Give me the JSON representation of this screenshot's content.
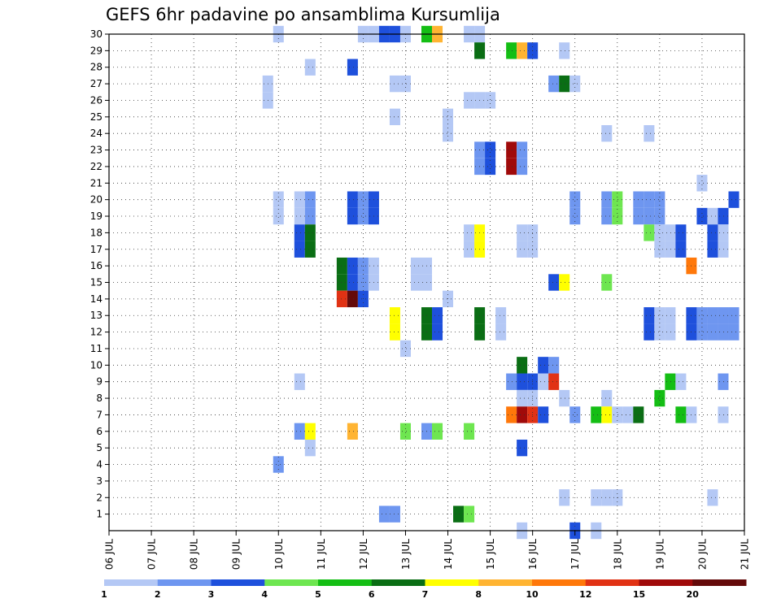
{
  "chart_data": {
    "type": "heatmap",
    "title": "GEFS 6hr padavine po ansamblima Kursumlija",
    "xlabel": "",
    "ylabel": "",
    "x_ticks": [
      "06 JUL",
      "07 JUL",
      "08 JUL",
      "09 JUL",
      "10 JUL",
      "11 JUL",
      "12 JUL",
      "13 JUL",
      "14 JUL",
      "15 JUL",
      "16 JUL",
      "17 JUL",
      "18 JUL",
      "19 JUL",
      "20 JUL",
      "21 JUL"
    ],
    "x_range_days": [
      6,
      21
    ],
    "y_ticks": [
      1,
      2,
      3,
      4,
      5,
      6,
      7,
      8,
      9,
      10,
      11,
      12,
      13,
      14,
      15,
      16,
      17,
      18,
      19,
      20,
      21,
      22,
      23,
      24,
      25,
      26,
      27,
      28,
      29,
      30
    ],
    "y_range": [
      0,
      30
    ],
    "grid": true,
    "colorbar": {
      "bounds": [
        1,
        2,
        3,
        4,
        5,
        6,
        7,
        8,
        10,
        12,
        15,
        20
      ],
      "labels": [
        "1",
        "2",
        "3",
        "4",
        "5",
        "6",
        "7",
        "8",
        "10",
        "12",
        "15",
        "20"
      ],
      "colors": [
        "#b4c8f5",
        "#6e96f0",
        "#1e50dc",
        "#6ee650",
        "#14be14",
        "#0a6e14",
        "#ffff00",
        "#ffb432",
        "#ff780a",
        "#e13214",
        "#a00a0a",
        "#640a0a"
      ]
    },
    "cells_note": "each cell: member, forecast time (day of July + hour), class index into colorbar.colors (0=1-2mm ... 11=>20mm)",
    "cells": [
      [
        30,
        10.0,
        0
      ],
      [
        30,
        12.0,
        0
      ],
      [
        30,
        12.25,
        0
      ],
      [
        30,
        12.5,
        2
      ],
      [
        30,
        12.75,
        2
      ],
      [
        30,
        13.0,
        0
      ],
      [
        30,
        13.5,
        4
      ],
      [
        30,
        13.75,
        7
      ],
      [
        30,
        14.5,
        0
      ],
      [
        30,
        14.75,
        0
      ],
      [
        29,
        14.75,
        5
      ],
      [
        29,
        15.5,
        4
      ],
      [
        29,
        15.75,
        7
      ],
      [
        29,
        16.0,
        2
      ],
      [
        29,
        16.75,
        0
      ],
      [
        28,
        10.75,
        0
      ],
      [
        28,
        11.75,
        2
      ],
      [
        27,
        9.75,
        0
      ],
      [
        27,
        12.75,
        0
      ],
      [
        27,
        13.0,
        0
      ],
      [
        27,
        16.5,
        1
      ],
      [
        27,
        16.75,
        5
      ],
      [
        27,
        17.0,
        0
      ],
      [
        26,
        9.75,
        0
      ],
      [
        26,
        14.5,
        0
      ],
      [
        26,
        14.75,
        0
      ],
      [
        26,
        15.0,
        0
      ],
      [
        25,
        12.75,
        0
      ],
      [
        25,
        14.0,
        0
      ],
      [
        24,
        14.0,
        0
      ],
      [
        24,
        17.75,
        0
      ],
      [
        24,
        18.75,
        0
      ],
      [
        23,
        14.75,
        1
      ],
      [
        23,
        15.0,
        2
      ],
      [
        23,
        15.5,
        10
      ],
      [
        23,
        15.75,
        1
      ],
      [
        22,
        14.75,
        1
      ],
      [
        22,
        15.0,
        2
      ],
      [
        22,
        15.5,
        10
      ],
      [
        22,
        15.75,
        1
      ],
      [
        21,
        20.0,
        0
      ],
      [
        20,
        10.0,
        0
      ],
      [
        20,
        10.5,
        0
      ],
      [
        20,
        10.75,
        1
      ],
      [
        20,
        11.75,
        2
      ],
      [
        20,
        12.0,
        1
      ],
      [
        20,
        12.25,
        2
      ],
      [
        20,
        17.0,
        1
      ],
      [
        20,
        17.75,
        1
      ],
      [
        20,
        18.0,
        3
      ],
      [
        20,
        18.5,
        1
      ],
      [
        20,
        18.75,
        1
      ],
      [
        20,
        19.0,
        1
      ],
      [
        20,
        20.75,
        2
      ],
      [
        19,
        10.0,
        0
      ],
      [
        19,
        10.5,
        0
      ],
      [
        19,
        10.75,
        1
      ],
      [
        19,
        11.75,
        2
      ],
      [
        19,
        12.0,
        1
      ],
      [
        19,
        12.25,
        2
      ],
      [
        19,
        17.0,
        1
      ],
      [
        19,
        17.75,
        1
      ],
      [
        19,
        18.0,
        3
      ],
      [
        19,
        18.5,
        1
      ],
      [
        19,
        18.75,
        1
      ],
      [
        19,
        19.0,
        1
      ],
      [
        19,
        20.0,
        2
      ],
      [
        19,
        20.25,
        0
      ],
      [
        19,
        20.5,
        2
      ],
      [
        18,
        10.5,
        2
      ],
      [
        18,
        10.75,
        5
      ],
      [
        18,
        14.5,
        0
      ],
      [
        18,
        14.75,
        6
      ],
      [
        18,
        15.75,
        0
      ],
      [
        18,
        16.0,
        0
      ],
      [
        18,
        18.75,
        3
      ],
      [
        18,
        19.0,
        0
      ],
      [
        18,
        19.25,
        0
      ],
      [
        18,
        19.5,
        2
      ],
      [
        18,
        20.25,
        2
      ],
      [
        18,
        20.5,
        0
      ],
      [
        17,
        10.5,
        2
      ],
      [
        17,
        10.75,
        5
      ],
      [
        17,
        14.5,
        0
      ],
      [
        17,
        14.75,
        6
      ],
      [
        17,
        15.75,
        0
      ],
      [
        17,
        16.0,
        0
      ],
      [
        17,
        19.0,
        0
      ],
      [
        17,
        19.25,
        0
      ],
      [
        17,
        19.5,
        2
      ],
      [
        17,
        20.25,
        2
      ],
      [
        17,
        20.5,
        0
      ],
      [
        16,
        11.5,
        5
      ],
      [
        16,
        11.75,
        2
      ],
      [
        16,
        12.0,
        1
      ],
      [
        16,
        12.25,
        0
      ],
      [
        16,
        13.25,
        0
      ],
      [
        16,
        13.5,
        0
      ],
      [
        16,
        19.75,
        8
      ],
      [
        15,
        11.5,
        5
      ],
      [
        15,
        11.75,
        2
      ],
      [
        15,
        12.0,
        1
      ],
      [
        15,
        12.25,
        0
      ],
      [
        15,
        13.25,
        0
      ],
      [
        15,
        13.5,
        0
      ],
      [
        15,
        16.5,
        2
      ],
      [
        15,
        16.75,
        6
      ],
      [
        15,
        17.75,
        3
      ],
      [
        14,
        11.5,
        9
      ],
      [
        14,
        11.75,
        11
      ],
      [
        14,
        12.0,
        2
      ],
      [
        14,
        14.0,
        0
      ],
      [
        13,
        12.75,
        6
      ],
      [
        13,
        13.5,
        5
      ],
      [
        13,
        13.75,
        2
      ],
      [
        13,
        14.75,
        5
      ],
      [
        13,
        15.25,
        0
      ],
      [
        13,
        18.75,
        2
      ],
      [
        13,
        19.0,
        0
      ],
      [
        13,
        19.25,
        0
      ],
      [
        13,
        19.75,
        2
      ],
      [
        13,
        20.0,
        1
      ],
      [
        13,
        20.25,
        1
      ],
      [
        13,
        20.5,
        1
      ],
      [
        13,
        20.75,
        1
      ],
      [
        12,
        12.75,
        6
      ],
      [
        12,
        13.5,
        5
      ],
      [
        12,
        13.75,
        2
      ],
      [
        12,
        14.75,
        5
      ],
      [
        12,
        15.25,
        0
      ],
      [
        12,
        18.75,
        2
      ],
      [
        12,
        19.0,
        0
      ],
      [
        12,
        19.25,
        0
      ],
      [
        12,
        19.75,
        2
      ],
      [
        12,
        20.0,
        1
      ],
      [
        12,
        20.25,
        1
      ],
      [
        12,
        20.5,
        1
      ],
      [
        12,
        20.75,
        1
      ],
      [
        11,
        13.0,
        0
      ],
      [
        10,
        15.75,
        5
      ],
      [
        10,
        16.25,
        2
      ],
      [
        10,
        16.5,
        1
      ],
      [
        9,
        10.5,
        0
      ],
      [
        9,
        15.5,
        1
      ],
      [
        9,
        15.75,
        2
      ],
      [
        9,
        16.0,
        2
      ],
      [
        9,
        16.25,
        0
      ],
      [
        9,
        16.5,
        9
      ],
      [
        9,
        19.25,
        4
      ],
      [
        9,
        19.5,
        0
      ],
      [
        9,
        20.5,
        1
      ],
      [
        8,
        15.75,
        0
      ],
      [
        8,
        16.0,
        0
      ],
      [
        8,
        16.75,
        0
      ],
      [
        8,
        17.75,
        0
      ],
      [
        8,
        19.0,
        4
      ],
      [
        7,
        15.5,
        8
      ],
      [
        7,
        15.75,
        10
      ],
      [
        7,
        16.0,
        9
      ],
      [
        7,
        16.25,
        2
      ],
      [
        7,
        17.0,
        1
      ],
      [
        7,
        17.5,
        4
      ],
      [
        7,
        17.75,
        6
      ],
      [
        7,
        18.0,
        0
      ],
      [
        7,
        18.25,
        0
      ],
      [
        7,
        18.5,
        5
      ],
      [
        7,
        19.5,
        4
      ],
      [
        7,
        19.75,
        0
      ],
      [
        7,
        20.5,
        0
      ],
      [
        6,
        10.5,
        1
      ],
      [
        6,
        10.75,
        6
      ],
      [
        6,
        11.75,
        7
      ],
      [
        6,
        13.0,
        3
      ],
      [
        6,
        13.5,
        1
      ],
      [
        6,
        13.75,
        3
      ],
      [
        6,
        14.5,
        3
      ],
      [
        5,
        10.75,
        0
      ],
      [
        5,
        15.75,
        2
      ],
      [
        4,
        10.0,
        1
      ],
      [
        2,
        16.75,
        0
      ],
      [
        2,
        17.5,
        0
      ],
      [
        2,
        17.75,
        0
      ],
      [
        2,
        18.0,
        0
      ],
      [
        2,
        20.25,
        0
      ],
      [
        1,
        12.5,
        1
      ],
      [
        1,
        12.75,
        1
      ],
      [
        1,
        14.25,
        5
      ],
      [
        1,
        14.5,
        3
      ],
      [
        0,
        15.75,
        0
      ],
      [
        0,
        17.0,
        2
      ],
      [
        0,
        17.5,
        0
      ]
    ]
  }
}
